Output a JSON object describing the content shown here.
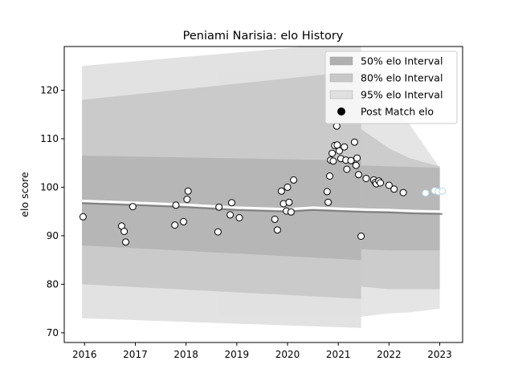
{
  "chart_data": {
    "type": "scatter",
    "title": "Peniami Narisia: elo History",
    "xlabel": "",
    "ylabel": "elo score",
    "xlim": [
      2015.6,
      2023.45
    ],
    "ylim": [
      68,
      129
    ],
    "x_ticks": [
      2016,
      2017,
      2018,
      2019,
      2020,
      2021,
      2022,
      2023
    ],
    "x_tick_labels": [
      "2016",
      "2017",
      "2018",
      "2019",
      "2020",
      "2021",
      "2022",
      "2023"
    ],
    "y_ticks": [
      70,
      80,
      90,
      100,
      110,
      120
    ],
    "y_tick_labels": [
      "70",
      "80",
      "90",
      "100",
      "110",
      "120"
    ],
    "grid": false,
    "legend": {
      "position": "top-right",
      "entries": [
        {
          "label": "50% elo Interval",
          "kind": "patch",
          "color": "#b0b0b0"
        },
        {
          "label": "80% elo Interval",
          "kind": "patch",
          "color": "#c8c8c8"
        },
        {
          "label": "95% elo Interval",
          "kind": "patch",
          "color": "#e0e0e0"
        },
        {
          "label": "Post Match elo",
          "kind": "marker",
          "color": "#000000"
        }
      ]
    },
    "intervals_main": {
      "x": [
        2015.95,
        2021.45
      ],
      "i95": [
        [
          73,
          125
        ],
        [
          71,
          130
        ]
      ],
      "i80": [
        [
          80,
          118
        ],
        [
          77,
          124
        ]
      ],
      "i50": [
        [
          88,
          106.5
        ],
        [
          85,
          105.5
        ]
      ]
    },
    "intervals_tail": {
      "x": [
        2018.65,
        2021.45,
        2022.0,
        2022.4,
        2023.0
      ],
      "i95": [
        [
          73.2,
          124
        ],
        [
          73.3,
          123.5
        ],
        [
          74,
          116
        ],
        [
          74.2,
          113
        ],
        [
          75,
          104
        ]
      ],
      "i80": [
        [
          79.5,
          113
        ],
        [
          79.5,
          112
        ],
        [
          79,
          108
        ],
        [
          79,
          106
        ],
        [
          79,
          104.3
        ]
      ],
      "i50": [
        [
          87.5,
          104.5
        ],
        [
          87.2,
          104.5
        ],
        [
          87,
          104.3
        ],
        [
          87,
          104.2
        ],
        [
          87,
          104
        ]
      ]
    },
    "rating_line": {
      "x": [
        2015.95,
        2017.0,
        2018.0,
        2019.0,
        2020.0,
        2020.5,
        2021.0,
        2021.5,
        2022.0,
        2022.5,
        2023.05
      ],
      "y": [
        96.7,
        96.3,
        95.9,
        95.3,
        95.0,
        95.3,
        95.1,
        94.9,
        94.8,
        94.6,
        94.5
      ],
      "color": "#808080"
    },
    "series": [
      {
        "type": "scatter",
        "color": "#000000",
        "points": [
          [
            2015.97,
            93.9
          ],
          [
            2016.73,
            92.0
          ],
          [
            2016.78,
            90.9
          ],
          [
            2016.81,
            88.7
          ],
          [
            2016.95,
            96.0
          ],
          [
            2017.78,
            92.2
          ],
          [
            2017.8,
            96.3
          ],
          [
            2017.95,
            92.9
          ],
          [
            2018.02,
            97.5
          ],
          [
            2018.04,
            99.2
          ],
          [
            2018.63,
            90.8
          ],
          [
            2018.65,
            95.9
          ],
          [
            2018.87,
            94.3
          ],
          [
            2018.9,
            96.8
          ],
          [
            2019.05,
            93.7
          ],
          [
            2019.75,
            93.4
          ],
          [
            2019.8,
            91.2
          ],
          [
            2019.88,
            99.2
          ],
          [
            2019.92,
            96.6
          ],
          [
            2019.98,
            95.1
          ],
          [
            2020.0,
            100.0
          ],
          [
            2020.03,
            96.9
          ],
          [
            2020.07,
            94.9
          ],
          [
            2020.12,
            101.5
          ],
          [
            2020.78,
            99.1
          ],
          [
            2020.8,
            96.9
          ],
          [
            2020.83,
            102.3
          ],
          [
            2020.85,
            105.6
          ],
          [
            2020.88,
            107.0
          ],
          [
            2020.9,
            105.4
          ],
          [
            2020.93,
            108.6
          ],
          [
            2020.97,
            112.6
          ],
          [
            2020.98,
            108.7
          ],
          [
            2021.02,
            107.5
          ],
          [
            2021.05,
            105.9
          ],
          [
            2021.12,
            108.3
          ],
          [
            2021.15,
            105.6
          ],
          [
            2021.17,
            103.7
          ],
          [
            2021.25,
            105.5
          ],
          [
            2021.32,
            109.3
          ],
          [
            2021.35,
            104.5
          ],
          [
            2021.37,
            106.0
          ],
          [
            2021.4,
            102.6
          ],
          [
            2021.45,
            89.9
          ],
          [
            2021.55,
            101.8
          ],
          [
            2021.7,
            101.5
          ],
          [
            2021.73,
            101.0
          ],
          [
            2021.75,
            100.7
          ],
          [
            2021.8,
            101.3
          ],
          [
            2021.83,
            100.9
          ],
          [
            2022.0,
            100.4
          ],
          [
            2022.1,
            99.6
          ],
          [
            2022.28,
            98.9
          ]
        ]
      },
      {
        "type": "scatter",
        "color": "#b9d6ea",
        "points": [
          [
            2022.72,
            98.8
          ],
          [
            2022.9,
            99.3
          ],
          [
            2022.97,
            99.1
          ],
          [
            2023.05,
            99.2
          ]
        ]
      }
    ]
  }
}
